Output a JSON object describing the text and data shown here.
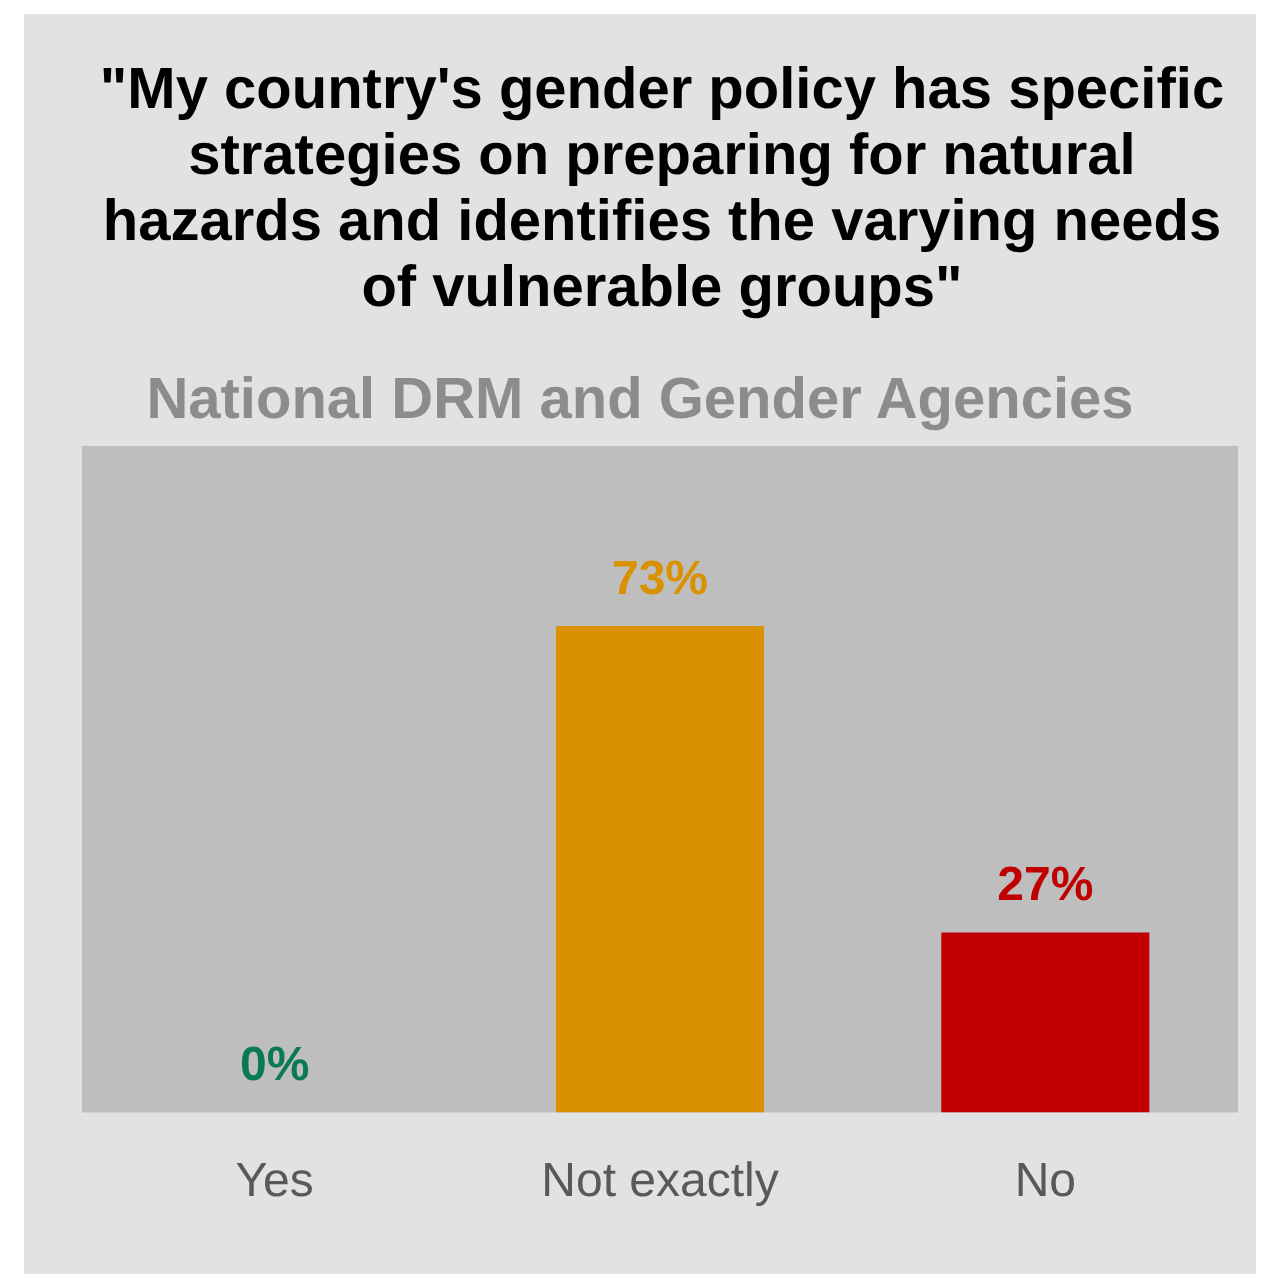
{
  "chart_data": {
    "type": "bar",
    "title": "\"My country's gender policy has specific strategies on preparing for natural hazards and identifies the varying needs of vulnerable groups\"",
    "subtitle": "National DRM and Gender Agencies",
    "categories": [
      "Yes",
      "Not exactly",
      "No"
    ],
    "values": [
      0,
      73,
      27
    ],
    "colors": [
      "#0b7a52",
      "#d99100",
      "#c00000"
    ],
    "value_labels": [
      "0%",
      "73%",
      "27%"
    ],
    "ylim": [
      0,
      100
    ]
  }
}
